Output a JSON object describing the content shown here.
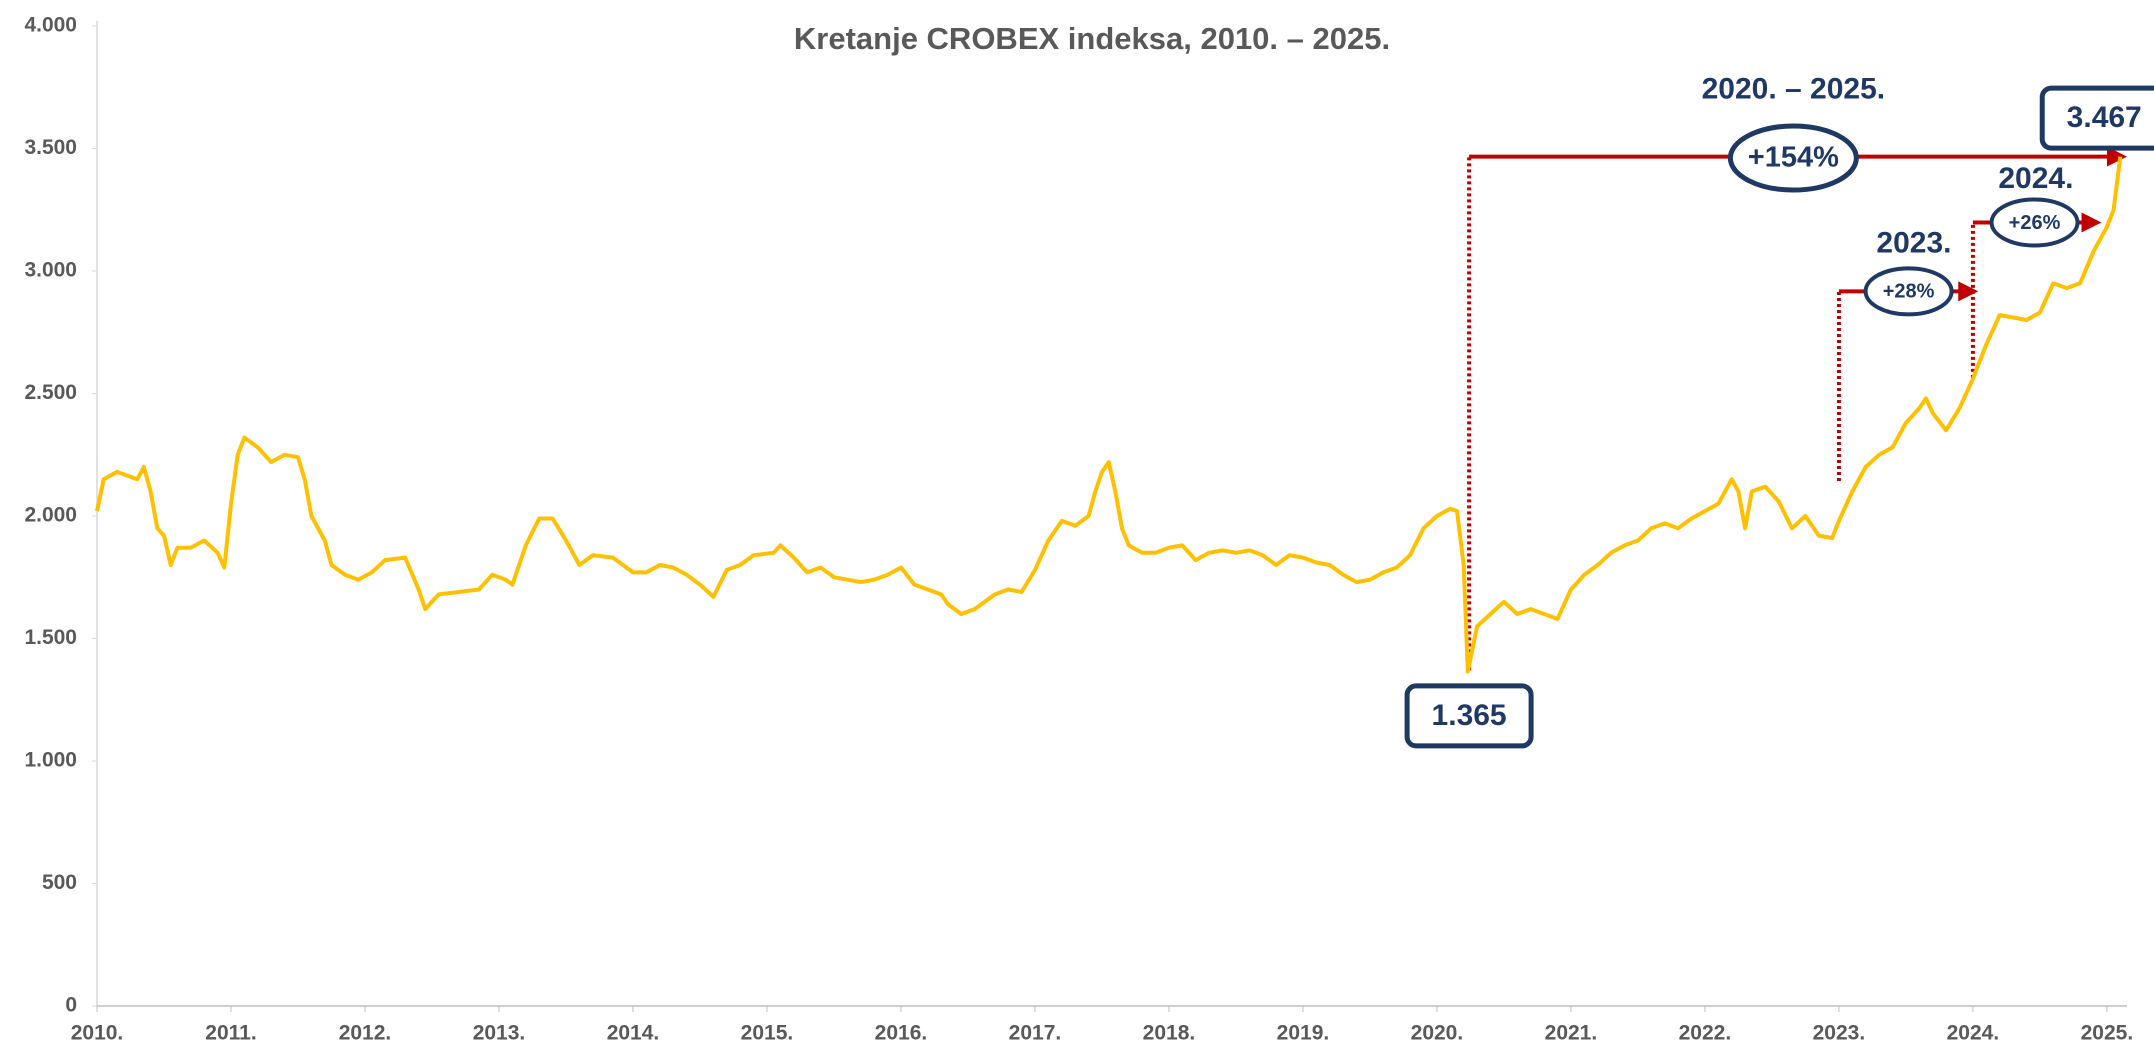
{
  "chart_data": {
    "type": "line",
    "title": "Kretanje CROBEX indeksa, 2010. – 2025.",
    "x": [
      2010.0,
      2010.05,
      2010.15,
      2010.3,
      2010.35,
      2010.4,
      2010.45,
      2010.5,
      2010.55,
      2010.6,
      2010.7,
      2010.8,
      2010.9,
      2010.95,
      2011.0,
      2011.05,
      2011.1,
      2011.2,
      2011.3,
      2011.4,
      2011.5,
      2011.55,
      2011.6,
      2011.7,
      2011.75,
      2011.85,
      2011.95,
      2012.05,
      2012.15,
      2012.3,
      2012.4,
      2012.45,
      2012.55,
      2012.7,
      2012.85,
      2012.95,
      2013.05,
      2013.1,
      2013.2,
      2013.3,
      2013.4,
      2013.5,
      2013.6,
      2013.7,
      2013.85,
      2014.0,
      2014.1,
      2014.2,
      2014.3,
      2014.4,
      2014.5,
      2014.6,
      2014.7,
      2014.8,
      2014.9,
      2015.05,
      2015.1,
      2015.2,
      2015.3,
      2015.4,
      2015.5,
      2015.6,
      2015.7,
      2015.8,
      2015.9,
      2016.0,
      2016.1,
      2016.2,
      2016.3,
      2016.35,
      2016.45,
      2016.55,
      2016.7,
      2016.8,
      2016.9,
      2017.0,
      2017.1,
      2017.2,
      2017.3,
      2017.4,
      2017.45,
      2017.5,
      2017.55,
      2017.6,
      2017.65,
      2017.7,
      2017.8,
      2017.9,
      2018.0,
      2018.1,
      2018.2,
      2018.3,
      2018.4,
      2018.5,
      2018.6,
      2018.7,
      2018.8,
      2018.9,
      2019.0,
      2019.1,
      2019.2,
      2019.3,
      2019.4,
      2019.5,
      2019.6,
      2019.7,
      2019.8,
      2019.9,
      2020.0,
      2020.1,
      2020.15,
      2020.2,
      2020.23,
      2020.3,
      2020.4,
      2020.5,
      2020.6,
      2020.7,
      2020.8,
      2020.9,
      2021.0,
      2021.1,
      2021.2,
      2021.3,
      2021.4,
      2021.5,
      2021.6,
      2021.7,
      2021.8,
      2021.9,
      2022.0,
      2022.1,
      2022.2,
      2022.25,
      2022.3,
      2022.35,
      2022.45,
      2022.55,
      2022.65,
      2022.75,
      2022.85,
      2022.95,
      2023.0,
      2023.1,
      2023.2,
      2023.3,
      2023.4,
      2023.5,
      2023.6,
      2023.65,
      2023.7,
      2023.8,
      2023.9,
      2024.0,
      2024.1,
      2024.2,
      2024.3,
      2024.4,
      2024.5,
      2024.6,
      2024.7,
      2024.8,
      2024.9,
      2025.0,
      2025.05,
      2025.1
    ],
    "series": [
      {
        "color": "#FFC000",
        "values": [
          2020,
          2150,
          2180,
          2150,
          2200,
          2100,
          1950,
          1920,
          1800,
          1870,
          1870,
          1900,
          1850,
          1790,
          2050,
          2250,
          2320,
          2280,
          2220,
          2250,
          2240,
          2150,
          2000,
          1900,
          1800,
          1760,
          1740,
          1770,
          1820,
          1830,
          1700,
          1620,
          1680,
          1690,
          1700,
          1760,
          1740,
          1720,
          1880,
          1990,
          1990,
          1900,
          1800,
          1840,
          1830,
          1770,
          1770,
          1800,
          1790,
          1760,
          1720,
          1670,
          1780,
          1800,
          1840,
          1850,
          1880,
          1830,
          1770,
          1790,
          1750,
          1740,
          1730,
          1740,
          1760,
          1790,
          1720,
          1700,
          1680,
          1640,
          1600,
          1620,
          1680,
          1700,
          1690,
          1780,
          1900,
          1980,
          1960,
          2000,
          2100,
          2180,
          2220,
          2100,
          1950,
          1880,
          1850,
          1850,
          1870,
          1880,
          1820,
          1850,
          1860,
          1850,
          1860,
          1840,
          1800,
          1840,
          1830,
          1810,
          1800,
          1760,
          1730,
          1740,
          1770,
          1790,
          1840,
          1950,
          2000,
          2030,
          2020,
          1800,
          1365,
          1550,
          1600,
          1650,
          1600,
          1620,
          1600,
          1580,
          1700,
          1760,
          1800,
          1850,
          1880,
          1900,
          1950,
          1970,
          1950,
          1990,
          2020,
          2050,
          2150,
          2100,
          1950,
          2100,
          2120,
          2060,
          1950,
          2000,
          1920,
          1910,
          1980,
          2100,
          2200,
          2250,
          2280,
          2380,
          2440,
          2480,
          2420,
          2350,
          2440,
          2560,
          2700,
          2820,
          2810,
          2800,
          2830,
          2950,
          2930,
          2950,
          3080,
          3180,
          3250,
          3467
        ]
      }
    ],
    "xlim": [
      2010,
      2025.15
    ],
    "xticks": [
      {
        "value": 2010,
        "label": "2010."
      },
      {
        "value": 2011,
        "label": "2011."
      },
      {
        "value": 2012,
        "label": "2012."
      },
      {
        "value": 2013,
        "label": "2013."
      },
      {
        "value": 2014,
        "label": "2014."
      },
      {
        "value": 2015,
        "label": "2015."
      },
      {
        "value": 2016,
        "label": "2016."
      },
      {
        "value": 2017,
        "label": "2017."
      },
      {
        "value": 2018,
        "label": "2018."
      },
      {
        "value": 2019,
        "label": "2019."
      },
      {
        "value": 2020,
        "label": "2020."
      },
      {
        "value": 2021,
        "label": "2021."
      },
      {
        "value": 2022,
        "label": "2022."
      },
      {
        "value": 2023,
        "label": "2023."
      },
      {
        "value": 2024,
        "label": "2024."
      },
      {
        "value": 2025,
        "label": "2025."
      }
    ],
    "ylim": [
      0,
      4000
    ],
    "yticks": [
      0,
      500,
      {
        "value": 1000,
        "label": "1.000"
      },
      {
        "value": 1500,
        "label": "1.500"
      },
      {
        "value": 2000,
        "label": "2.000"
      },
      {
        "value": 2500,
        "label": "2.500"
      },
      {
        "value": 3000,
        "label": "3.000"
      },
      {
        "value": 3500,
        "label": "3.500"
      },
      {
        "value": 4000,
        "label": "4.000"
      }
    ],
    "grid": false,
    "arrows": [
      {
        "color": "#C00000",
        "x": [
          2020.24,
          2025.12
        ],
        "y": [
          1370,
          3467
        ]
      },
      {
        "color": "#C00000",
        "x": [
          2023.0,
          2024.01
        ],
        "y": [
          2143,
          2917
        ]
      },
      {
        "color": "#C00000",
        "x": [
          2024.0,
          2024.93
        ],
        "y": [
          2564,
          3198
        ]
      }
    ],
    "annotations": [
      {
        "text": "1.365",
        "shape": "box",
        "x": 2020.24,
        "y": 1184
      },
      {
        "text": "3.467",
        "shape": "box",
        "x": 2024.98,
        "y": 3624
      },
      {
        "text": "2020. – 2025.",
        "shape": "text",
        "x": 2022.66,
        "y": 3736
      },
      {
        "text": "+154%",
        "shape": "ellipse",
        "size": "large",
        "x": 2022.66,
        "y": 3461
      },
      {
        "text": "2023.",
        "shape": "text",
        "x": 2023.56,
        "y": 3108
      },
      {
        "text": "+28%",
        "shape": "ellipse",
        "size": "small",
        "x": 2023.52,
        "y": 2917
      },
      {
        "text": "2024.",
        "shape": "text",
        "x": 2024.47,
        "y": 3372
      },
      {
        "text": "+26%",
        "shape": "ellipse",
        "size": "small",
        "x": 2024.46,
        "y": 3198
      }
    ],
    "annotation_color": "#1F3864"
  }
}
